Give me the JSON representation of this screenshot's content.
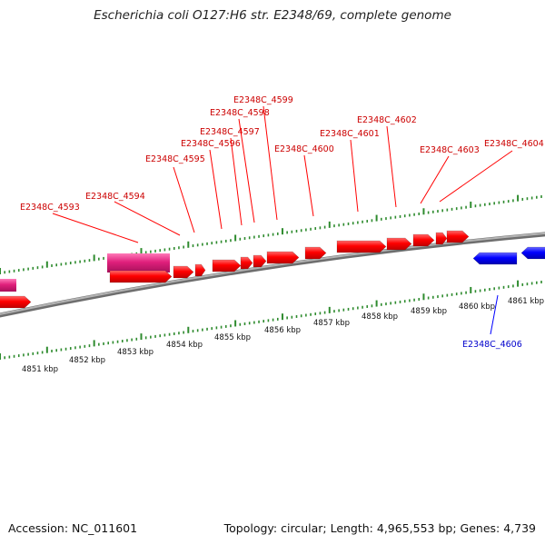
{
  "header": {
    "title": "Escherichia coli O127:H6 str. E2348/69, complete genome"
  },
  "footer": {
    "accession": "Accession: NC_011601",
    "topology": "Topology: circular; Length: 4,965,553 bp; Genes: 4,739"
  },
  "colors": {
    "forward_gene": "#ff0000",
    "reverse_gene": "#0000ff",
    "highlight_gene": "#e0207c",
    "axis": "#909090",
    "tick": "#2e8b2e",
    "forward_label": "#cc0000",
    "reverse_label": "#0000cc"
  },
  "genome_map": {
    "scale_labels": [
      "4851 kbp",
      "4852 kbp",
      "4853 kbp",
      "4854 kbp",
      "4855 kbp",
      "4856 kbp",
      "4857 kbp",
      "4858 kbp",
      "4859 kbp",
      "4860 kbp",
      "4861 kbp"
    ],
    "forward_gene_labels": [
      "E2348C_4593",
      "E2348C_4594",
      "E2348C_4595",
      "E2348C_4596",
      "E2348C_4597",
      "E2348C_4598",
      "E2348C_4599",
      "E2348C_4600",
      "E2348C_4601",
      "E2348C_4602",
      "E2348C_4603",
      "E2348C_4604"
    ],
    "reverse_gene_labels": [
      "E2348C_4606"
    ]
  }
}
